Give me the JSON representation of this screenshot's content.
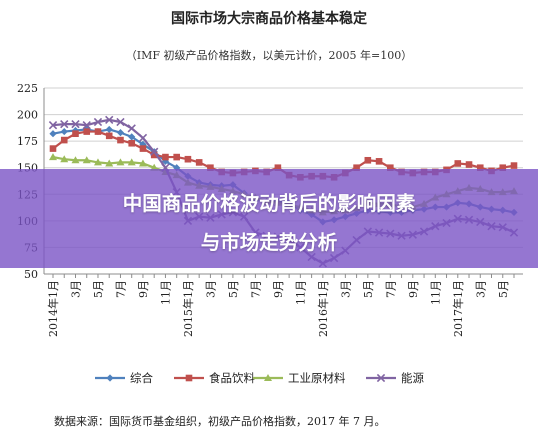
{
  "chart_data": {
    "type": "line",
    "title": "国际市场大宗商品价格基本稳定",
    "subtitle": "（IMF 初级产品价格指数，以美元计价，2005 年=100）",
    "ylim": [
      50,
      225
    ],
    "yticks": [
      50,
      75,
      100,
      125,
      150,
      175,
      200,
      225
    ],
    "grid": true,
    "legend_position": "bottom",
    "x_labels": [
      {
        "index": 0,
        "month": "2014年1月"
      },
      {
        "index": 2,
        "month": "3月"
      },
      {
        "index": 4,
        "month": "5月"
      },
      {
        "index": 6,
        "month": "7月"
      },
      {
        "index": 8,
        "month": "9月"
      },
      {
        "index": 10,
        "month": "11月"
      },
      {
        "index": 12,
        "month": "2015年1月"
      },
      {
        "index": 14,
        "month": "3月"
      },
      {
        "index": 16,
        "month": "5月"
      },
      {
        "index": 18,
        "month": "7月"
      },
      {
        "index": 20,
        "month": "9月"
      },
      {
        "index": 22,
        "month": "11月"
      },
      {
        "index": 24,
        "month": "2016年1月"
      },
      {
        "index": 26,
        "month": "3月"
      },
      {
        "index": 28,
        "month": "5月"
      },
      {
        "index": 30,
        "month": "7月"
      },
      {
        "index": 32,
        "month": "9月"
      },
      {
        "index": 34,
        "month": "11月"
      },
      {
        "index": 36,
        "month": "2017年1月"
      },
      {
        "index": 38,
        "month": "3月"
      },
      {
        "index": 40,
        "month": "5月"
      }
    ],
    "series": [
      {
        "name": "综合",
        "color": "#4f81bd",
        "marker": "diamond",
        "values": [
          182,
          184,
          185,
          186,
          184,
          186,
          183,
          179,
          172,
          165,
          156,
          150,
          142,
          136,
          134,
          133,
          134,
          126,
          120,
          118,
          118,
          117,
          110,
          106,
          99,
          101,
          104,
          107,
          110,
          109,
          108,
          108,
          110,
          111,
          113,
          113,
          117,
          116,
          113,
          111,
          110,
          108
        ]
      },
      {
        "name": "食品饮料",
        "color": "#c0504d",
        "marker": "square",
        "values": [
          168,
          176,
          182,
          184,
          184,
          180,
          176,
          173,
          168,
          162,
          160,
          160,
          158,
          155,
          150,
          146,
          145,
          146,
          147,
          146,
          150,
          143,
          141,
          142,
          142,
          141,
          145,
          150,
          157,
          156,
          150,
          146,
          145,
          146,
          146,
          148,
          154,
          153,
          150,
          147,
          150,
          152
        ]
      },
      {
        "name": "工业原材料",
        "color": "#9bbb59",
        "marker": "triangle",
        "values": [
          160,
          158,
          157,
          157,
          155,
          154,
          155,
          155,
          154,
          150,
          146,
          143,
          136,
          133,
          132,
          130,
          128,
          125,
          122,
          118,
          117,
          115,
          113,
          110,
          108,
          109,
          110,
          112,
          117,
          116,
          115,
          114,
          113,
          116,
          122,
          125,
          128,
          131,
          130,
          127,
          127,
          128
        ]
      },
      {
        "name": "能源",
        "color": "#8064a2",
        "marker": "cross",
        "values": [
          190,
          191,
          191,
          190,
          193,
          195,
          193,
          187,
          178,
          165,
          150,
          127,
          100,
          104,
          103,
          106,
          108,
          104,
          89,
          86,
          85,
          82,
          75,
          66,
          60,
          65,
          72,
          82,
          90,
          89,
          88,
          86,
          87,
          90,
          95,
          98,
          102,
          101,
          99,
          95,
          94,
          89
        ]
      }
    ]
  },
  "overlay": {
    "line1": "中国商品价格波动背后的影响因素",
    "line2": "与市场走势分析"
  },
  "source_note": "数据来源：国际货币基金组织，初级产品价格指数，2017 年 7 月。"
}
